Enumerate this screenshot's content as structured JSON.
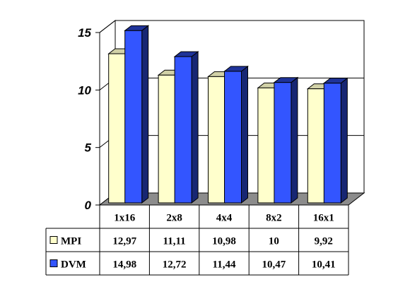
{
  "chart_data": {
    "type": "bar",
    "style": "3d-clustered-column",
    "title": "",
    "xlabel": "",
    "ylabel": "",
    "ylim": [
      0,
      15
    ],
    "yticks": [
      "0",
      "5",
      "10",
      "15"
    ],
    "grid": true,
    "legend_position": "data-table",
    "categories": [
      "1x16",
      "2x8",
      "4x4",
      "8x2",
      "16x1"
    ],
    "series": [
      {
        "name": "MPI",
        "color": "#ffffcc",
        "values": [
          12.97,
          11.11,
          10.98,
          10,
          9.92
        ],
        "labels": [
          "12,97",
          "11,11",
          "10,98",
          "10",
          "9,92"
        ]
      },
      {
        "name": "DVM",
        "color": "#3355ff",
        "values": [
          14.98,
          12.72,
          11.44,
          10.47,
          10.41
        ],
        "labels": [
          "14,98",
          "12,72",
          "11,44",
          "10,47",
          "10,41"
        ]
      }
    ]
  }
}
